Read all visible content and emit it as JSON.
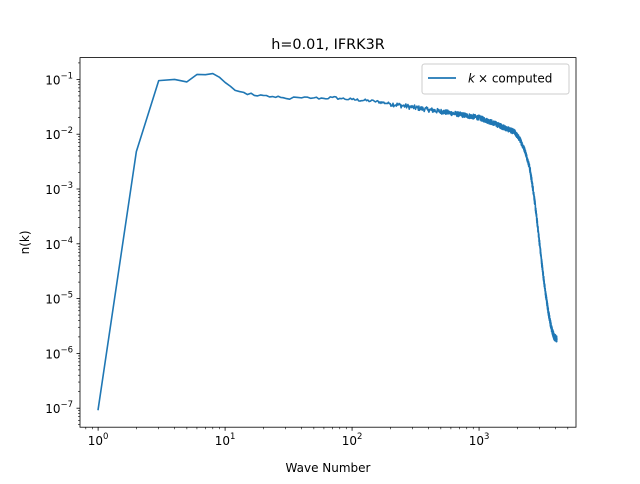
{
  "chart_data": {
    "type": "line",
    "title": "h=0.01, IFRK3R",
    "xlabel": "Wave Number",
    "ylabel": "n(k)",
    "xscale": "log",
    "yscale": "log",
    "xlim": [
      0.72,
      5800
    ],
    "ylim": [
      4.5e-08,
      0.25
    ],
    "grid": false,
    "legend_position": "top-right",
    "x_ticks": [
      {
        "value": 1,
        "base": "10",
        "exp": "0"
      },
      {
        "value": 10,
        "base": "10",
        "exp": "1"
      },
      {
        "value": 100,
        "base": "10",
        "exp": "2"
      },
      {
        "value": 1000,
        "base": "10",
        "exp": "3"
      }
    ],
    "y_ticks": [
      {
        "value": 1e-07,
        "base": "10",
        "exp": "−7"
      },
      {
        "value": 1e-06,
        "base": "10",
        "exp": "−6"
      },
      {
        "value": 1e-05,
        "base": "10",
        "exp": "−5"
      },
      {
        "value": 0.0001,
        "base": "10",
        "exp": "−4"
      },
      {
        "value": 0.001,
        "base": "10",
        "exp": "−3"
      },
      {
        "value": 0.01,
        "base": "10",
        "exp": "−2"
      },
      {
        "value": 0.1,
        "base": "10",
        "exp": "−1"
      }
    ],
    "series": [
      {
        "name_math": "k",
        "name_rest": " computed",
        "color": "#1f77b4",
        "x": [
          1,
          2,
          3,
          4,
          5,
          6,
          7,
          8,
          9,
          10,
          11,
          12,
          13,
          14,
          15,
          16,
          17,
          18,
          19,
          20,
          25,
          30,
          40,
          50,
          60,
          70,
          80,
          100,
          150,
          200,
          300,
          400,
          500,
          700,
          1000,
          1300,
          1600,
          1900,
          2100,
          2300,
          2500,
          2700,
          2900,
          3100,
          3300,
          3500,
          3700,
          3900,
          4096
        ],
        "y": [
          9.5e-08,
          0.0048,
          0.095,
          0.1,
          0.09,
          0.123,
          0.122,
          0.128,
          0.11,
          0.088,
          0.075,
          0.063,
          0.06,
          0.058,
          0.053,
          0.056,
          0.051,
          0.05,
          0.052,
          0.051,
          0.047,
          0.045,
          0.046,
          0.046,
          0.045,
          0.047,
          0.045,
          0.043,
          0.04,
          0.036,
          0.031,
          0.028,
          0.026,
          0.023,
          0.02,
          0.016,
          0.013,
          0.011,
          0.008,
          0.005,
          0.0025,
          0.0008,
          0.0002,
          5e-05,
          1.5e-05,
          6e-06,
          3e-06,
          2e-06,
          1.8e-06
        ]
      }
    ]
  }
}
